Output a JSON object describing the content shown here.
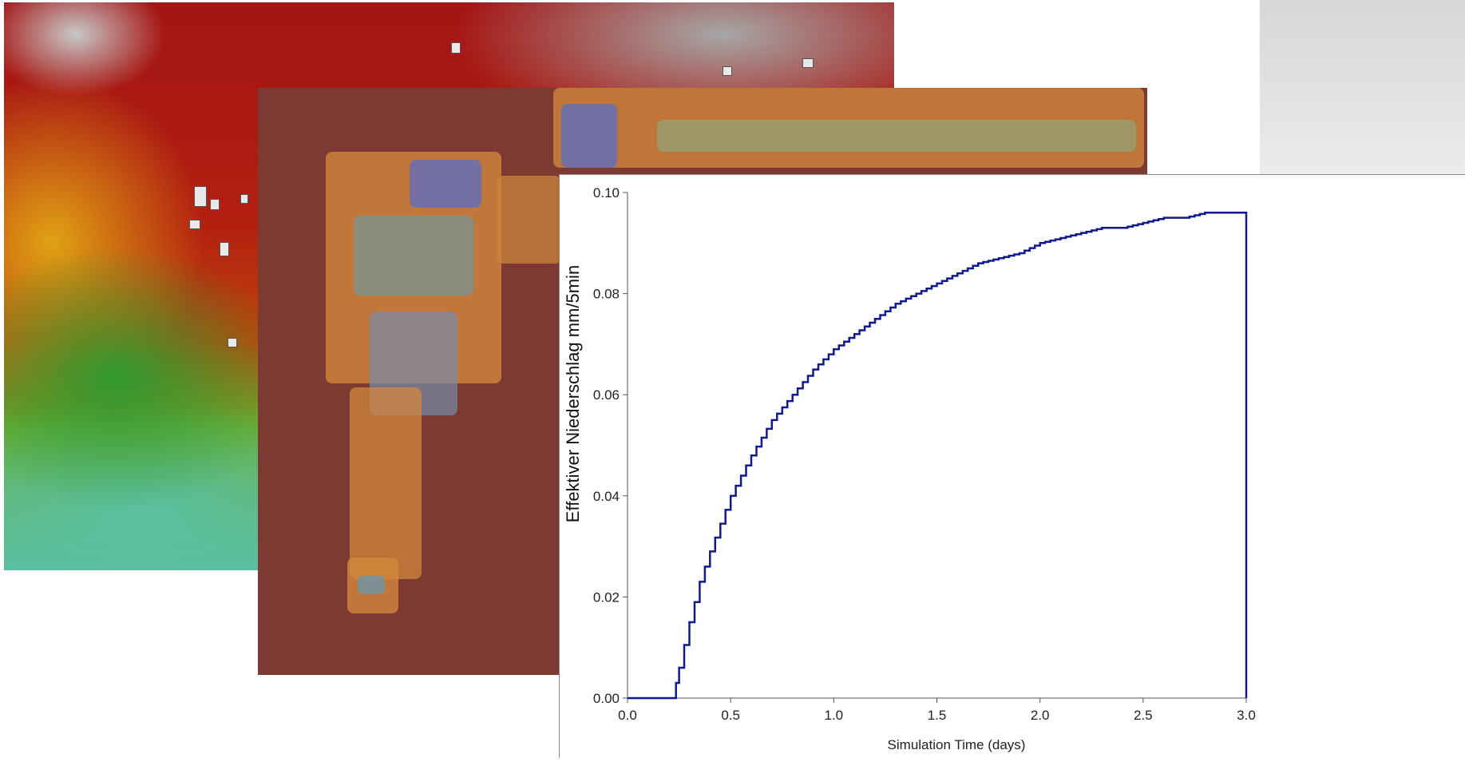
{
  "chart_data": {
    "type": "line",
    "title": "",
    "xlabel": "Simulation Time (days)",
    "ylabel": "Effektiver Niederschlag mm/5min",
    "xlim": [
      0,
      3.0
    ],
    "ylim": [
      0,
      0.1
    ],
    "xticks": [
      "0.0",
      "0.5",
      "1.0",
      "1.5",
      "2.0",
      "2.5",
      "3.0"
    ],
    "yticks": [
      "0.00",
      "0.02",
      "0.04",
      "0.06",
      "0.08",
      "0.10"
    ],
    "grid": false,
    "step_line": true,
    "line_color": "#101a8a",
    "x": [
      0,
      0.22,
      0.25,
      0.3,
      0.35,
      0.4,
      0.5,
      0.6,
      0.7,
      0.8,
      0.9,
      1.0,
      1.1,
      1.2,
      1.3,
      1.4,
      1.5,
      1.6,
      1.7,
      1.8,
      1.9,
      2.0,
      2.1,
      2.2,
      2.3,
      2.4,
      2.5,
      2.6,
      2.7,
      2.8,
      2.9,
      2.99,
      3.0
    ],
    "y": [
      0,
      0,
      0.006,
      0.015,
      0.023,
      0.029,
      0.04,
      0.048,
      0.055,
      0.06,
      0.065,
      0.069,
      0.072,
      0.075,
      0.078,
      0.08,
      0.082,
      0.084,
      0.086,
      0.087,
      0.088,
      0.09,
      0.091,
      0.092,
      0.093,
      0.093,
      0.094,
      0.095,
      0.095,
      0.096,
      0.096,
      0.096,
      0
    ]
  }
}
